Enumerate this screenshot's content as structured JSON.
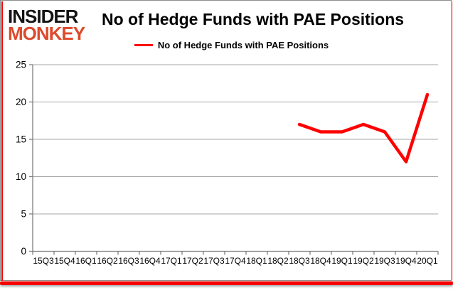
{
  "logo": {
    "line1": "INSIDER",
    "line2": "MONKEY"
  },
  "title": "No of Hedge Funds with PAE Positions",
  "legend": {
    "label": "No of Hedge Funds with PAE Positions"
  },
  "colors": {
    "series_red": "#fe0000",
    "logo_black": "#141414",
    "logo_red": "#dd4a2c",
    "accent_bar_red": "#f40000",
    "gridline_grey": "#a6a6a6",
    "axis_grey": "#7f7f7f",
    "tick_text": "#000000"
  },
  "chart_data": {
    "type": "line",
    "title": "No of Hedge Funds with PAE Positions",
    "categories": [
      "15Q3",
      "15Q4",
      "16Q1",
      "16Q2",
      "16Q3",
      "16Q4",
      "17Q1",
      "17Q2",
      "17Q3",
      "17Q4",
      "18Q1",
      "18Q2",
      "18Q3",
      "18Q4",
      "19Q1",
      "19Q2",
      "19Q3",
      "19Q4",
      "20Q1"
    ],
    "series": [
      {
        "name": "No of Hedge Funds with PAE Positions",
        "color": "#fe0000",
        "values": [
          null,
          null,
          null,
          null,
          null,
          null,
          null,
          null,
          null,
          null,
          null,
          null,
          17,
          16,
          16,
          17,
          16,
          12,
          21
        ]
      }
    ],
    "xlabel": "",
    "ylabel": "",
    "ylim": [
      0,
      25
    ],
    "yticks": [
      0,
      5,
      10,
      15,
      20,
      25
    ],
    "grid": true,
    "legend_position": "top-center"
  }
}
